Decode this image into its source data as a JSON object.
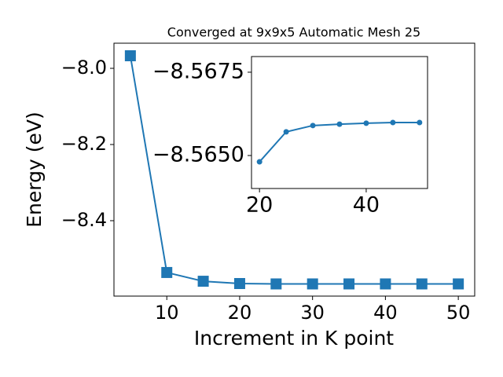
{
  "chart_data": [
    {
      "type": "line",
      "title": "Converged at 9x9x5 Automatic Mesh 25",
      "x_label": "Increment in K point",
      "y_label": "Energy (eV)",
      "x": [
        5,
        10,
        15,
        20,
        25,
        30,
        35,
        40,
        45,
        50
      ],
      "series": [
        {
          "color": "#1f77b4",
          "marker": "square",
          "values": [
            -7.967,
            -8.536,
            -8.559,
            -8.565,
            -8.566,
            -8.566,
            -8.566,
            -8.566,
            -8.566,
            -8.566
          ]
        }
      ],
      "xlim": [
        2.75,
        52.25
      ],
      "xticks": [
        10,
        20,
        30,
        40,
        50
      ],
      "ylim": [
        -8.598,
        -7.934
      ],
      "yticks": [
        {
          "value": -8.0,
          "label": "−8.0"
        },
        {
          "value": -8.2,
          "label": "−8.2"
        },
        {
          "value": -8.4,
          "label": "−8.4"
        }
      ]
    },
    {
      "type": "line",
      "x": [
        20,
        25,
        30,
        35,
        40,
        45,
        50
      ],
      "series": [
        {
          "color": "#1f77b4",
          "marker": "circle",
          "values": [
            -8.56481,
            -8.56571,
            -8.5659,
            -8.56594,
            -8.56597,
            -8.56599,
            -8.56599
          ]
        }
      ],
      "xlim": [
        18.5,
        51.5
      ],
      "xticks": [
        20,
        40
      ],
      "ylim": [
        -8.56401,
        -8.56797
      ],
      "yticks": [
        {
          "value": -8.5675,
          "label": "−8.5675"
        },
        {
          "value": -8.565,
          "label": "−8.5650"
        }
      ]
    }
  ]
}
